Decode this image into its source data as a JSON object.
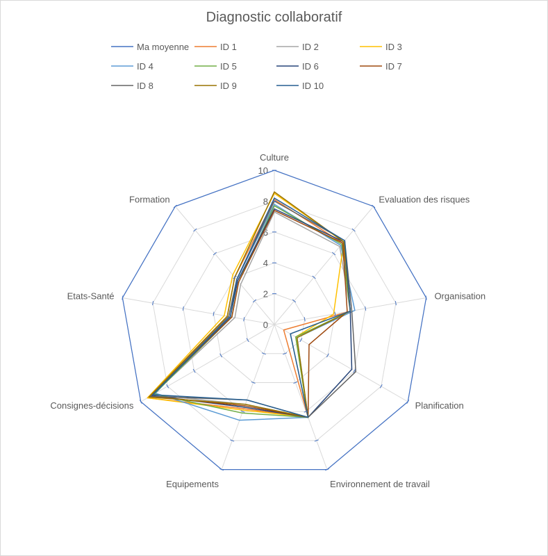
{
  "chart_data": {
    "type": "radar",
    "title": "Diagnostic collaboratif",
    "axes": [
      "Culture",
      "Evaluation des risques",
      "Organisation",
      "Planification",
      "Environnement de travail",
      "Equipements",
      "Consignes-décisions",
      "Etats-Santé",
      "Formation"
    ],
    "r_range": [
      0,
      10
    ],
    "r_ticks": [
      "0",
      "2",
      "4",
      "6",
      "8",
      "10"
    ],
    "grid": true,
    "legend_position": "top",
    "series": [
      {
        "name": "Ma moyenne",
        "color": "#4472C4",
        "values": [
          10,
          10,
          10,
          10,
          10,
          10,
          10,
          10,
          10
        ]
      },
      {
        "name": "ID 1",
        "color": "#ED7D31",
        "values": [
          8.1,
          6.9,
          5.0,
          0.7,
          6.4,
          5.8,
          9.5,
          3.1,
          4.0
        ]
      },
      {
        "name": "ID 2",
        "color": "#A5A5A5",
        "values": [
          7.3,
          6.6,
          5.0,
          1.2,
          6.4,
          5.5,
          9.1,
          2.6,
          3.4
        ]
      },
      {
        "name": "ID 3",
        "color": "#FFC000",
        "values": [
          8.5,
          7.0,
          3.9,
          1.6,
          6.4,
          5.9,
          9.5,
          3.3,
          4.2
        ]
      },
      {
        "name": "ID 4",
        "color": "#5B9BD5",
        "values": [
          7.8,
          6.7,
          5.3,
          1.7,
          6.4,
          6.6,
          8.9,
          3.0,
          3.8
        ]
      },
      {
        "name": "ID 5",
        "color": "#70AD47",
        "values": [
          7.7,
          6.8,
          5.0,
          1.6,
          6.4,
          6.1,
          9.0,
          2.8,
          3.6
        ]
      },
      {
        "name": "ID 6",
        "color": "#264478",
        "values": [
          7.5,
          7.0,
          5.0,
          5.8,
          6.4,
          5.7,
          9.2,
          2.9,
          3.7
        ]
      },
      {
        "name": "ID 7",
        "color": "#9E480E",
        "values": [
          7.4,
          6.9,
          4.8,
          2.6,
          6.4,
          5.6,
          9.3,
          2.8,
          3.6
        ]
      },
      {
        "name": "ID 8",
        "color": "#636363",
        "values": [
          8.0,
          7.1,
          5.1,
          6.1,
          6.4,
          5.2,
          9.3,
          3.0,
          3.8
        ]
      },
      {
        "name": "ID 9",
        "color": "#997300",
        "values": [
          8.6,
          7.0,
          5.0,
          1.7,
          6.4,
          5.5,
          9.4,
          3.1,
          4.0
        ]
      },
      {
        "name": "ID 10",
        "color": "#255E91",
        "values": [
          8.2,
          7.1,
          5.0,
          1.2,
          6.4,
          5.2,
          9.1,
          2.9,
          3.8
        ]
      }
    ]
  }
}
